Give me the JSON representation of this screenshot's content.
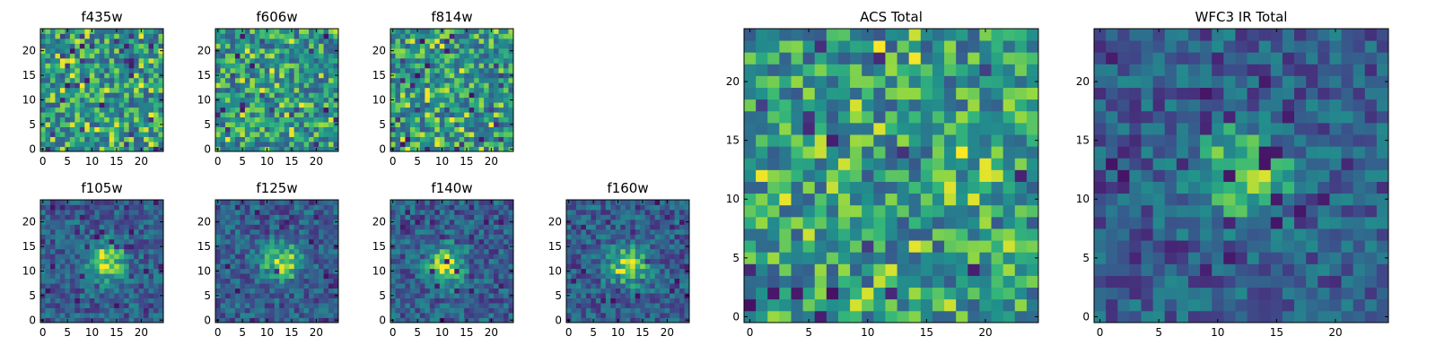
{
  "chart_data": [
    {
      "type": "heatmap",
      "title": "f435w",
      "xticks": [
        "0",
        "5",
        "10",
        "15",
        "20"
      ],
      "yticks": [
        "0",
        "5",
        "10",
        "15",
        "20"
      ],
      "xlim": [
        -0.5,
        24.5
      ],
      "ylim": [
        -0.5,
        24.5
      ],
      "grid": false,
      "colormap": "viridis",
      "structure": "noise"
    },
    {
      "type": "heatmap",
      "title": "f606w",
      "xticks": [
        "0",
        "5",
        "10",
        "15",
        "20"
      ],
      "yticks": [
        "0",
        "5",
        "10",
        "15",
        "20"
      ],
      "xlim": [
        -0.5,
        24.5
      ],
      "ylim": [
        -0.5,
        24.5
      ],
      "grid": false,
      "colormap": "viridis",
      "structure": "noise"
    },
    {
      "type": "heatmap",
      "title": "f814w",
      "xticks": [
        "0",
        "5",
        "10",
        "15",
        "20"
      ],
      "yticks": [
        "0",
        "5",
        "10",
        "15",
        "20"
      ],
      "xlim": [
        -0.5,
        24.5
      ],
      "ylim": [
        -0.5,
        24.5
      ],
      "grid": false,
      "colormap": "viridis",
      "structure": "noise"
    },
    {
      "type": "heatmap",
      "title": "f105w",
      "xticks": [
        "0",
        "5",
        "10",
        "15",
        "20"
      ],
      "yticks": [
        "0",
        "5",
        "10",
        "15",
        "20"
      ],
      "xlim": [
        -0.5,
        24.5
      ],
      "ylim": [
        -0.5,
        24.5
      ],
      "grid": false,
      "colormap": "viridis",
      "structure": "source",
      "source_center": [
        13,
        12
      ]
    },
    {
      "type": "heatmap",
      "title": "f125w",
      "xticks": [
        "0",
        "5",
        "10",
        "15",
        "20"
      ],
      "yticks": [
        "0",
        "5",
        "10",
        "15",
        "20"
      ],
      "xlim": [
        -0.5,
        24.5
      ],
      "ylim": [
        -0.5,
        24.5
      ],
      "grid": false,
      "colormap": "viridis",
      "structure": "source",
      "source_center": [
        13,
        12
      ]
    },
    {
      "type": "heatmap",
      "title": "f140w",
      "xticks": [
        "0",
        "5",
        "10",
        "15",
        "20"
      ],
      "yticks": [
        "0",
        "5",
        "10",
        "15",
        "20"
      ],
      "xlim": [
        -0.5,
        24.5
      ],
      "ylim": [
        -0.5,
        24.5
      ],
      "grid": false,
      "colormap": "viridis",
      "structure": "source",
      "source_center": [
        11,
        11
      ]
    },
    {
      "type": "heatmap",
      "title": "f160w",
      "xticks": [
        "0",
        "5",
        "10",
        "15",
        "20"
      ],
      "yticks": [
        "0",
        "5",
        "10",
        "15",
        "20"
      ],
      "xlim": [
        -0.5,
        24.5
      ],
      "ylim": [
        -0.5,
        24.5
      ],
      "grid": false,
      "colormap": "viridis",
      "structure": "source",
      "source_center": [
        12,
        11
      ]
    },
    {
      "type": "heatmap",
      "title": "ACS Total",
      "xticks": [
        "0",
        "5",
        "10",
        "15",
        "20"
      ],
      "yticks": [
        "0",
        "5",
        "10",
        "15",
        "20"
      ],
      "xlim": [
        -0.5,
        24.5
      ],
      "ylim": [
        -0.5,
        24.5
      ],
      "grid": false,
      "colormap": "viridis",
      "structure": "noise"
    },
    {
      "type": "heatmap",
      "title": "WFC3 IR Total",
      "xticks": [
        "0",
        "5",
        "10",
        "15",
        "20"
      ],
      "yticks": [
        "0",
        "5",
        "10",
        "15",
        "20"
      ],
      "xlim": [
        -0.5,
        24.5
      ],
      "ylim": [
        -0.5,
        24.5
      ],
      "grid": false,
      "colormap": "viridis",
      "structure": "source",
      "source_center": [
        12,
        12
      ]
    }
  ]
}
